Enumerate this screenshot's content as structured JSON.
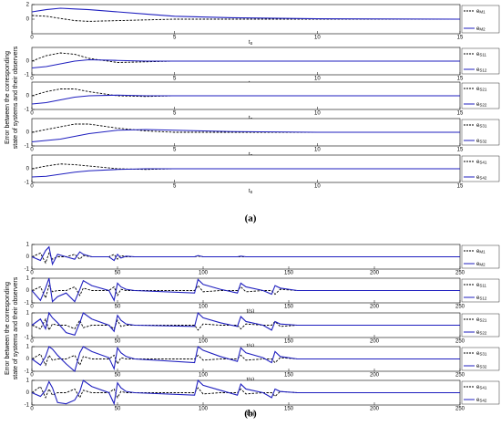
{
  "figures": [
    {
      "caption": "(a)",
      "y_label": [
        "Error between the corresponding",
        "state of systems and their observers"
      ]
    },
    {
      "caption": "(b)",
      "y_label": [
        "Error between the corresponding",
        "state of systems and their observers"
      ]
    }
  ],
  "chart_data": [
    {
      "type": "line",
      "x": [
        0,
        0.5,
        1,
        1.5,
        2,
        3,
        4,
        5,
        7,
        10,
        15
      ],
      "xlim": [
        0,
        15
      ],
      "xticks": [
        0,
        5,
        10,
        15
      ],
      "x_label": "t",
      "x_label_sub": "s",
      "ylim": [
        -2,
        2
      ],
      "yticks": [
        0,
        2
      ],
      "series": [
        {
          "name": "e",
          "subscript": "M1",
          "color": "#000000",
          "dash": true,
          "values": [
            0.5,
            0.4,
            0.1,
            -0.2,
            -0.3,
            -0.2,
            -0.1,
            0,
            0,
            0,
            0
          ]
        },
        {
          "name": "e",
          "subscript": "M2",
          "color": "#1f1fbf",
          "values": [
            1,
            1.3,
            1.5,
            1.4,
            1.3,
            1,
            0.7,
            0.4,
            0.2,
            0.05,
            0
          ]
        }
      ]
    },
    {
      "type": "line",
      "x": [
        0,
        0.5,
        1,
        1.5,
        2,
        3,
        4,
        5,
        7,
        10,
        15
      ],
      "xlim": [
        0,
        15
      ],
      "xticks": [
        0,
        5,
        10,
        15
      ],
      "x_label": "t",
      "x_label_sub": "s",
      "ylim": [
        -1,
        1
      ],
      "yticks": [
        -1,
        0
      ],
      "series": [
        {
          "name": "e",
          "subscript": "S11",
          "color": "#000000",
          "dash": true,
          "values": [
            0,
            0.4,
            0.6,
            0.5,
            0.2,
            -0.1,
            -0.05,
            0,
            0,
            0,
            0
          ]
        },
        {
          "name": "e",
          "subscript": "S12",
          "color": "#1f1fbf",
          "values": [
            -0.5,
            -0.4,
            -0.2,
            0,
            0.1,
            0.05,
            0,
            0,
            0,
            0,
            0
          ]
        }
      ]
    },
    {
      "type": "line",
      "x": [
        0,
        0.5,
        1,
        1.5,
        2,
        3,
        4,
        5,
        7,
        10,
        15
      ],
      "xlim": [
        0,
        15
      ],
      "xticks": [
        0,
        5,
        10,
        15
      ],
      "x_label": "t",
      "x_label_sub": "s",
      "ylim": [
        -1,
        1
      ],
      "yticks": [
        -1,
        0
      ],
      "series": [
        {
          "name": "e",
          "subscript": "S21",
          "color": "#000000",
          "dash": true,
          "values": [
            0,
            0.3,
            0.5,
            0.5,
            0.3,
            0,
            -0.05,
            0,
            0,
            0,
            0
          ]
        },
        {
          "name": "e",
          "subscript": "S22",
          "color": "#1f1fbf",
          "values": [
            -0.6,
            -0.5,
            -0.3,
            -0.1,
            0,
            0.05,
            0,
            0,
            0,
            0,
            0
          ]
        }
      ]
    },
    {
      "type": "line",
      "x": [
        0,
        0.5,
        1,
        1.5,
        2,
        3,
        4,
        5,
        7,
        10,
        15
      ],
      "xlim": [
        0,
        15
      ],
      "xticks": [
        0,
        5,
        10,
        15
      ],
      "x_label": "t",
      "x_label_sub": "s",
      "ylim": [
        -1,
        1
      ],
      "yticks": [
        -1,
        0
      ],
      "series": [
        {
          "name": "e",
          "subscript": "S31",
          "color": "#000000",
          "dash": true,
          "values": [
            0,
            0.2,
            0.4,
            0.6,
            0.6,
            0.3,
            0.1,
            0,
            0,
            0,
            0
          ]
        },
        {
          "name": "e",
          "subscript": "S32",
          "color": "#1f1fbf",
          "values": [
            -0.7,
            -0.6,
            -0.5,
            -0.3,
            -0.1,
            0.15,
            0.2,
            0.15,
            0.05,
            0,
            0
          ]
        }
      ]
    },
    {
      "type": "line",
      "x": [
        0,
        0.5,
        1,
        1.5,
        2,
        3,
        4,
        5,
        7,
        10,
        15
      ],
      "xlim": [
        0,
        15
      ],
      "xticks": [
        0,
        5,
        10,
        15
      ],
      "x_label": "t",
      "x_label_sub": "s",
      "ylim": [
        -1,
        1
      ],
      "yticks": [
        -1,
        0
      ],
      "series": [
        {
          "name": "e",
          "subscript": "S41",
          "color": "#000000",
          "dash": true,
          "values": [
            0,
            0.2,
            0.35,
            0.3,
            0.2,
            0,
            -0.05,
            0,
            0,
            0,
            0
          ]
        },
        {
          "name": "e",
          "subscript": "S42",
          "color": "#1f1fbf",
          "values": [
            -0.6,
            -0.55,
            -0.4,
            -0.25,
            -0.15,
            -0.05,
            0,
            0,
            0,
            0,
            0
          ]
        }
      ]
    },
    {
      "type": "line",
      "x": [
        0,
        5,
        8,
        10,
        12,
        15,
        20,
        25,
        28,
        30,
        35,
        45,
        48,
        50,
        52,
        55,
        60,
        95,
        97,
        100,
        110,
        120,
        122,
        125,
        135,
        140,
        142,
        145,
        155,
        160,
        250
      ],
      "xlim": [
        0,
        250
      ],
      "xticks": [
        0,
        50,
        100,
        150,
        200,
        250
      ],
      "ylim": [
        -1,
        1
      ],
      "yticks": [
        -1,
        0,
        1
      ],
      "series": [
        {
          "name": "e",
          "subscript": "M1",
          "color": "#000000",
          "dash": true,
          "values": [
            0,
            0.3,
            -0.5,
            0.3,
            -0.2,
            0,
            0,
            0.2,
            -0.2,
            0.1,
            0,
            0,
            0.2,
            -0.2,
            0.1,
            0,
            0,
            0,
            0.05,
            0,
            0,
            0,
            0,
            0,
            0,
            0,
            0,
            0,
            0,
            0,
            0
          ]
        },
        {
          "name": "e",
          "subscript": "M2",
          "color": "#1f1fbf",
          "values": [
            0,
            -0.3,
            0.5,
            0.8,
            -0.6,
            0.2,
            0,
            -0.2,
            0.4,
            0.2,
            0,
            0,
            -0.3,
            0.2,
            -0.1,
            0.05,
            0,
            0,
            0.1,
            0,
            0,
            0,
            0.05,
            0,
            0,
            0,
            0,
            0,
            0,
            0,
            0
          ]
        }
      ]
    },
    {
      "type": "line",
      "x": [
        0,
        5,
        8,
        10,
        12,
        15,
        20,
        25,
        28,
        30,
        35,
        45,
        48,
        50,
        52,
        55,
        60,
        95,
        97,
        100,
        110,
        120,
        122,
        125,
        135,
        140,
        142,
        145,
        155,
        160,
        250
      ],
      "xlim": [
        0,
        250
      ],
      "xticks": [
        0,
        50,
        100,
        150,
        200,
        250
      ],
      "x_label": "t(s)",
      "ylim": [
        -1,
        1
      ],
      "yticks": [
        -1,
        0,
        1
      ],
      "series": [
        {
          "name": "e",
          "subscript": "S11",
          "color": "#000000",
          "dash": true,
          "values": [
            0,
            0.3,
            -0.6,
            0.4,
            -0.1,
            0,
            0,
            0.3,
            -0.4,
            0.2,
            0,
            0,
            0.3,
            -0.4,
            0.1,
            0,
            0,
            0,
            0.4,
            -0.1,
            0,
            0,
            0.3,
            -0.1,
            0,
            0,
            -0.3,
            0.1,
            0,
            0,
            0
          ]
        },
        {
          "name": "e",
          "subscript": "S12",
          "color": "#1f1fbf",
          "values": [
            0,
            -0.8,
            0.2,
            1,
            -0.9,
            -0.5,
            -0.2,
            -0.9,
            0.1,
            0.8,
            0.4,
            0,
            -0.8,
            0.6,
            0.3,
            0.1,
            0,
            -0.2,
            0.9,
            0.5,
            0.1,
            -0.2,
            0.6,
            0.3,
            0,
            -0.3,
            0.4,
            0.2,
            0,
            0,
            0
          ]
        }
      ]
    },
    {
      "type": "line",
      "x": [
        0,
        5,
        8,
        10,
        12,
        15,
        20,
        25,
        28,
        30,
        35,
        45,
        48,
        50,
        52,
        55,
        60,
        95,
        97,
        100,
        110,
        120,
        122,
        125,
        135,
        140,
        142,
        145,
        155,
        160,
        250
      ],
      "xlim": [
        0,
        250
      ],
      "xticks": [
        0,
        50,
        100,
        150,
        200,
        250
      ],
      "x_label": "t(s)",
      "ylim": [
        -1,
        1
      ],
      "yticks": [
        -1,
        0,
        1
      ],
      "series": [
        {
          "name": "e",
          "subscript": "S21",
          "color": "#000000",
          "dash": true,
          "values": [
            0,
            -0.3,
            0.5,
            -0.4,
            0.1,
            0,
            0,
            -0.3,
            0.4,
            -0.2,
            0,
            0,
            -0.3,
            0.4,
            -0.1,
            0,
            0,
            0,
            -0.4,
            0.1,
            0,
            0,
            -0.3,
            0.1,
            0,
            0,
            0.3,
            -0.1,
            0,
            0,
            0
          ]
        },
        {
          "name": "e",
          "subscript": "S22",
          "color": "#1f1fbf",
          "values": [
            0,
            0.5,
            -0.3,
            1,
            0.6,
            0.2,
            -0.6,
            -0.8,
            0.2,
            1,
            0.5,
            0,
            -0.5,
            0.8,
            0.4,
            0.1,
            0,
            -0.1,
            1,
            0.6,
            0.2,
            -0.1,
            0.7,
            0.3,
            0,
            -0.4,
            0.3,
            0.1,
            0,
            0,
            0
          ]
        }
      ]
    },
    {
      "type": "line",
      "x": [
        0,
        5,
        8,
        10,
        12,
        15,
        20,
        25,
        28,
        30,
        35,
        45,
        48,
        50,
        52,
        55,
        60,
        95,
        97,
        100,
        110,
        120,
        122,
        125,
        135,
        140,
        142,
        145,
        155,
        160,
        250
      ],
      "xlim": [
        0,
        250
      ],
      "xticks": [
        0,
        50,
        100,
        150,
        200,
        250
      ],
      "x_label": "t(s)",
      "ylim": [
        -1,
        1
      ],
      "yticks": [
        -1,
        0,
        1
      ],
      "series": [
        {
          "name": "e",
          "subscript": "S31",
          "color": "#000000",
          "dash": true,
          "values": [
            0,
            0.4,
            -0.5,
            0.3,
            -0.1,
            0,
            0,
            0.3,
            -0.5,
            0.2,
            0,
            0,
            0.3,
            -0.4,
            0.1,
            0,
            0,
            0,
            0.3,
            -0.1,
            0,
            0,
            0.3,
            -0.1,
            0,
            0,
            -0.3,
            0.1,
            0,
            0,
            0
          ]
        },
        {
          "name": "e",
          "subscript": "S32",
          "color": "#1f1fbf",
          "values": [
            0,
            -0.5,
            0.2,
            1,
            0.8,
            0.3,
            -0.4,
            -1,
            0.5,
            1,
            0.6,
            0.1,
            -0.8,
            0.9,
            0.5,
            0.2,
            0,
            -0.3,
            1,
            0.7,
            0.2,
            -0.2,
            0.9,
            0.5,
            0.1,
            -0.3,
            0.6,
            0.2,
            0,
            0,
            0
          ]
        }
      ]
    },
    {
      "type": "line",
      "x": [
        0,
        5,
        8,
        10,
        12,
        15,
        20,
        25,
        28,
        30,
        35,
        45,
        48,
        50,
        52,
        55,
        60,
        95,
        97,
        100,
        110,
        120,
        122,
        125,
        135,
        140,
        142,
        145,
        155,
        160,
        250
      ],
      "xlim": [
        0,
        250
      ],
      "xticks": [
        0,
        50,
        100,
        150,
        200,
        250
      ],
      "x_label": "t(s)",
      "ylim": [
        -1,
        1
      ],
      "yticks": [
        -1,
        0,
        1
      ],
      "series": [
        {
          "name": "e",
          "subscript": "S41",
          "color": "#000000",
          "dash": true,
          "values": [
            0,
            0.5,
            -0.4,
            0.3,
            -0.2,
            0,
            0,
            0.3,
            -0.4,
            0.2,
            0,
            0,
            0.3,
            -0.4,
            0.1,
            0,
            0,
            0,
            0.4,
            -0.1,
            0,
            0,
            0.3,
            -0.1,
            0,
            0,
            -0.3,
            0.1,
            0,
            0,
            0
          ]
        },
        {
          "name": "e",
          "subscript": "S42",
          "color": "#1f1fbf",
          "values": [
            0,
            -0.3,
            0.2,
            0.9,
            0.4,
            -0.8,
            -0.9,
            -0.6,
            0.1,
            1,
            0.5,
            0,
            -0.9,
            0.8,
            0.4,
            0.1,
            0,
            -0.2,
            1,
            0.6,
            0.2,
            -0.2,
            0.7,
            0.3,
            0,
            -0.4,
            0.3,
            0.1,
            0,
            0,
            0
          ]
        }
      ]
    }
  ]
}
